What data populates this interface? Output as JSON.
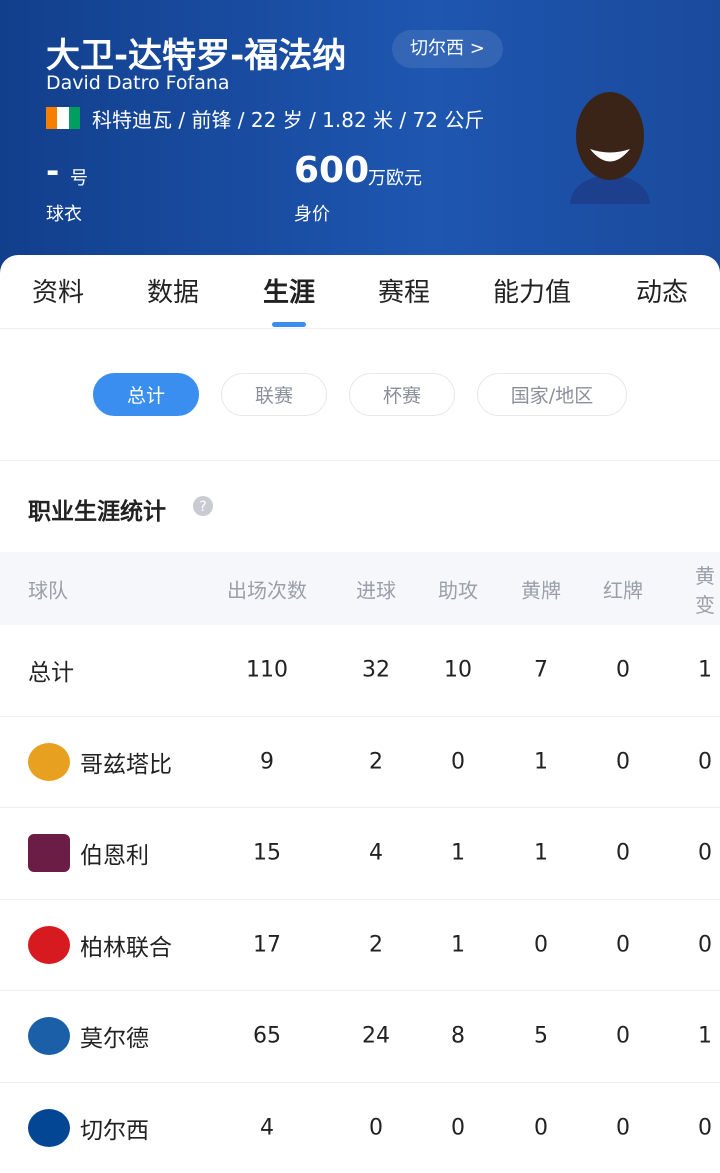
{
  "header": {
    "name_cn": "大卫-达特罗-福法纳",
    "club_link": "切尔西 >",
    "name_en": "David Datro Fofana",
    "info": "科特迪瓦 / 前锋 / 22 岁 / 1.82 米 / 72 公斤",
    "jersey_number": "-",
    "jersey_unit": "号",
    "jersey_label": "球衣",
    "value": "600",
    "value_unit": "万欧元",
    "value_label": "身价"
  },
  "tabs": [
    "资料",
    "数据",
    "生涯",
    "赛程",
    "能力值",
    "动态"
  ],
  "active_tab": 2,
  "filters": [
    "总计",
    "联赛",
    "杯赛",
    "国家/地区"
  ],
  "active_filter": 0,
  "section_title": "职业生涯统计",
  "table": {
    "columns": [
      "球队",
      "出场次数",
      "进球",
      "助攻",
      "黄牌",
      "红牌",
      "黄变"
    ],
    "rows": [
      [
        "总计",
        110,
        32,
        10,
        7,
        0,
        1
      ],
      [
        "哥兹塔比",
        9,
        2,
        0,
        1,
        0,
        0
      ],
      [
        "伯恩利",
        15,
        4,
        1,
        1,
        0,
        0
      ],
      [
        "柏林联合",
        17,
        2,
        1,
        0,
        0,
        0
      ],
      [
        "莫尔德",
        65,
        24,
        8,
        5,
        0,
        1
      ],
      [
        "切尔西",
        4,
        0,
        0,
        0,
        0,
        0
      ]
    ]
  }
}
